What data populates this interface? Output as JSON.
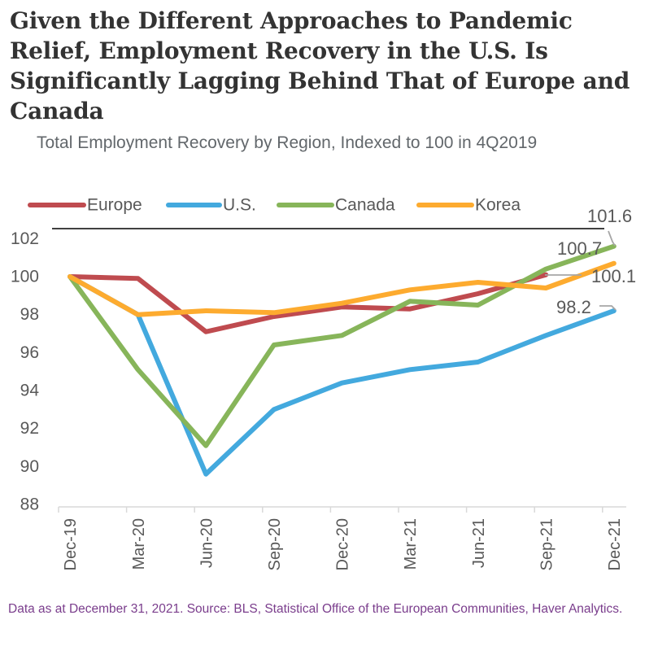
{
  "title_lines": [
    "Given the Different Approaches to Pandemic",
    "Relief, Employment Recovery in the U.S. Is",
    "Significantly Lagging Behind That of Europe and",
    "Canada"
  ],
  "subtitle": "Total Employment Recovery by Region, Indexed to 100 in 4Q2019",
  "footer": "Data as at December 31, 2021. Source: BLS, Statistical Office of the European Communities, Haver Analytics.",
  "chart_data": {
    "type": "line",
    "title": "Total Employment Recovery by Region, Indexed to 100 in 4Q2019",
    "xlabel": "",
    "ylabel": "",
    "categories": [
      "Dec-19",
      "Mar-20",
      "Jun-20",
      "Sep-20",
      "Dec-20",
      "Mar-21",
      "Jun-21",
      "Sep-21",
      "Dec-21"
    ],
    "ylim": [
      88,
      102
    ],
    "yticks": [
      88,
      90,
      92,
      94,
      96,
      98,
      100,
      102
    ],
    "grid": false,
    "legend": "top",
    "series": [
      {
        "name": "Europe",
        "color": "#bf4b4f",
        "values": [
          100,
          99.9,
          97.1,
          97.9,
          98.4,
          98.3,
          99.1,
          100.1,
          null
        ]
      },
      {
        "name": "U.S.",
        "color": "#43a9de",
        "values": [
          100,
          98.0,
          89.6,
          93.0,
          94.4,
          95.1,
          95.5,
          96.9,
          98.2
        ]
      },
      {
        "name": "Canada",
        "color": "#87b55a",
        "values": [
          100,
          95.1,
          91.1,
          96.4,
          96.9,
          98.7,
          98.5,
          100.4,
          101.6
        ]
      },
      {
        "name": "Korea",
        "color": "#fdab2f",
        "values": [
          100,
          98.0,
          98.2,
          98.1,
          98.6,
          99.3,
          99.7,
          99.4,
          100.7
        ]
      }
    ],
    "data_labels": [
      {
        "series": "Canada",
        "category": "Dec-21",
        "text": "101.6"
      },
      {
        "series": "Korea",
        "category": "Dec-21",
        "text": "100.7"
      },
      {
        "series": "Europe",
        "category": "Sep-21",
        "text": "100.1"
      },
      {
        "series": "U.S.",
        "category": "Dec-21",
        "text": "98.2"
      }
    ]
  }
}
